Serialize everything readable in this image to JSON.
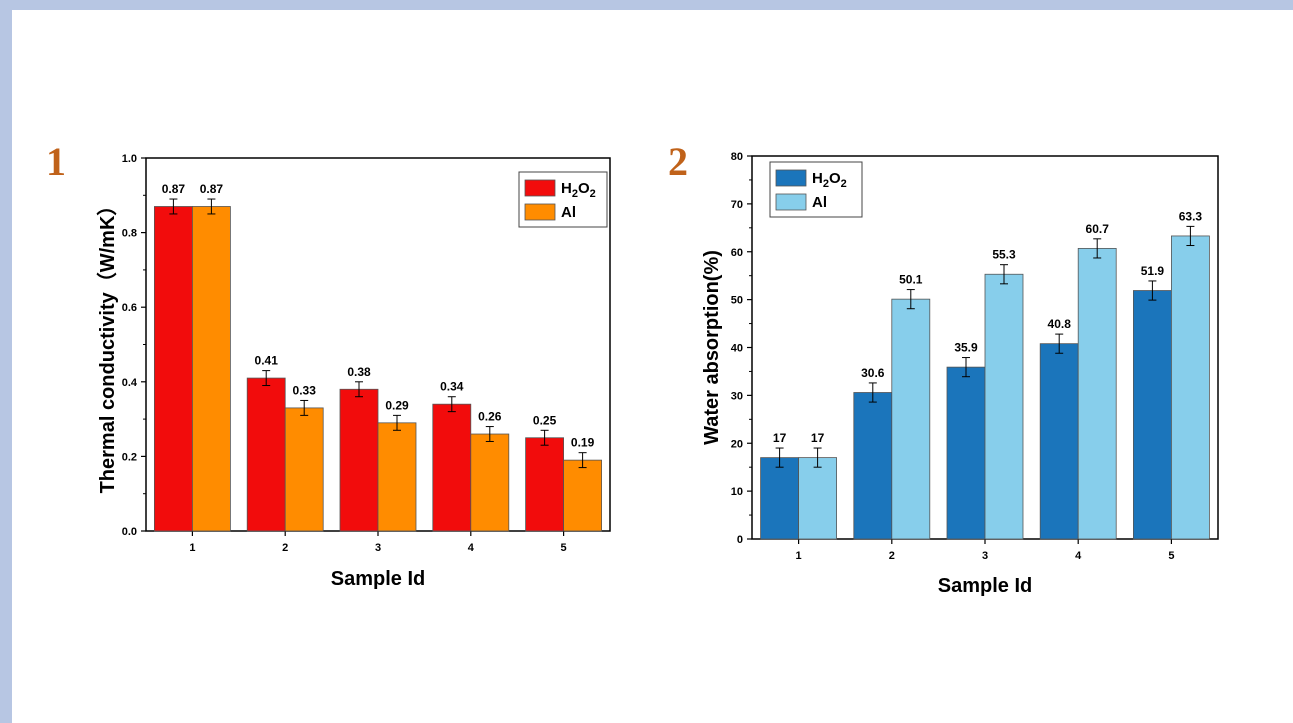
{
  "panels": [
    {
      "label": "1",
      "label_color": "#c0621a",
      "chart_data": {
        "type": "bar",
        "categories": [
          "1",
          "2",
          "3",
          "4",
          "5"
        ],
        "series": [
          {
            "name": "H2O2",
            "values": [
              0.87,
              0.41,
              0.38,
              0.34,
              0.25
            ],
            "errors": [
              0.02,
              0.02,
              0.02,
              0.02,
              0.02
            ],
            "color": "#f20c0c"
          },
          {
            "name": "Al",
            "values": [
              0.87,
              0.33,
              0.29,
              0.26,
              0.19
            ],
            "errors": [
              0.02,
              0.02,
              0.02,
              0.02,
              0.02
            ],
            "color": "#ff8c00"
          }
        ],
        "data_labels": [
          [
            "0.87",
            "0.41",
            "0.38",
            "0.34",
            "0.25"
          ],
          [
            "0.87",
            "0.33",
            "0.29",
            "0.26",
            "0.19"
          ]
        ],
        "xlabel": "Sample Id",
        "ylabel": "Thermal conductivity（W/mK）",
        "ylim": [
          0,
          1.0
        ],
        "yticks": [
          "0.0",
          "0.2",
          "0.4",
          "0.6",
          "0.8",
          "1.0"
        ],
        "grid": false,
        "legend": "top-right"
      }
    },
    {
      "label": "2",
      "label_color": "#c0621a",
      "chart_data": {
        "type": "bar",
        "categories": [
          "1",
          "2",
          "3",
          "4",
          "5"
        ],
        "series": [
          {
            "name": "H2O2",
            "values": [
              17,
              30.6,
              35.9,
              40.8,
              51.9
            ],
            "errors": [
              2,
              2,
              2,
              2,
              2
            ],
            "color": "#1b75bb"
          },
          {
            "name": "Al",
            "values": [
              17,
              50.1,
              55.3,
              60.7,
              63.3
            ],
            "errors": [
              2,
              2,
              2,
              2,
              2
            ],
            "color": "#87ceeb"
          }
        ],
        "data_labels": [
          [
            "17",
            "30.6",
            "35.9",
            "40.8",
            "51.9"
          ],
          [
            "17",
            "50.1",
            "55.3",
            "60.7",
            "63.3"
          ]
        ],
        "xlabel": "Sample Id",
        "ylabel": "Water absorption(%)",
        "ylim": [
          0,
          80
        ],
        "yticks": [
          "0",
          "10",
          "20",
          "30",
          "40",
          "50",
          "60",
          "70",
          "80"
        ],
        "grid": false,
        "legend": "top-left"
      }
    }
  ]
}
